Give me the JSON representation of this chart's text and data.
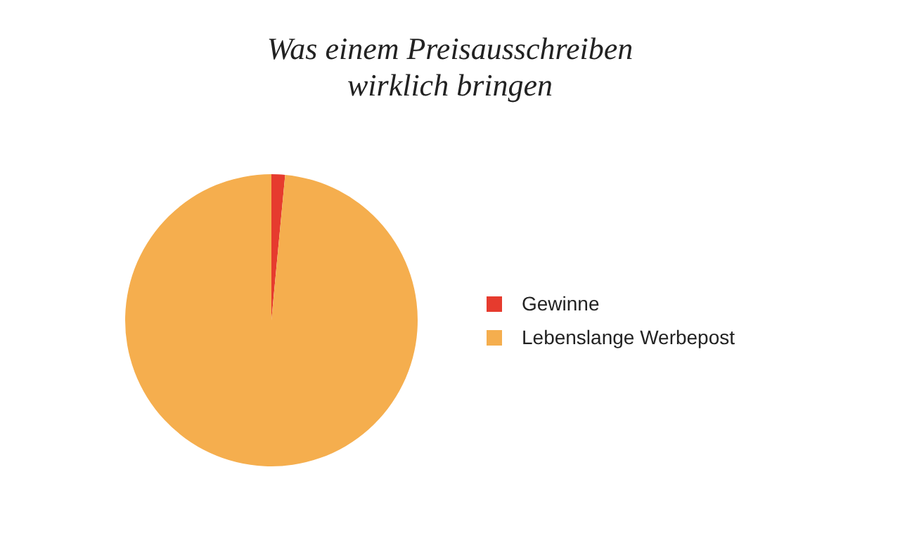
{
  "chart_data": {
    "type": "pie",
    "title": "Was einem Preisausschreiben wirklich bringen",
    "categories": [
      "Gewinne",
      "Lebenslange Werbepost"
    ],
    "values": [
      1.5,
      98.5
    ],
    "colors": [
      "#e63b2e",
      "#f5ae4e"
    ],
    "legend": "right"
  }
}
